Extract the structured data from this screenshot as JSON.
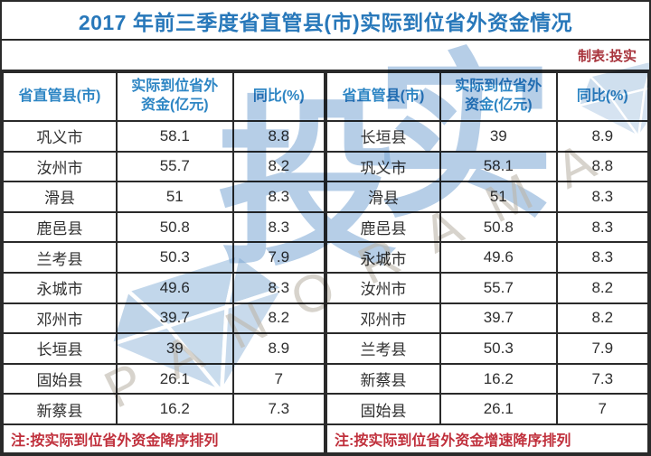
{
  "title": "2017 年前三季度省直管县(市)实际到位省外资金情况",
  "byline": "制表:投实",
  "colors": {
    "title_blue": "#2878ba",
    "header_blue": "#2e86c4",
    "byline_red": "#a8343c",
    "note_red": "#c0303c",
    "border": "#2a2a2a",
    "watermark_blue": "#7aa6d3",
    "watermark_gray": "#bcb5aa"
  },
  "watermark": {
    "char1": "投",
    "char2": "实",
    "brand": "PANORAMA"
  },
  "chart_data": {
    "type": "table",
    "title": "2017 年前三季度省直管县(市)实际到位省外资金情况",
    "tables": [
      {
        "headers": [
          "省直管县(市)",
          [
            "实际到位省外",
            "资金(亿元)"
          ],
          "同比(%)"
        ],
        "rows": [
          [
            "巩义市",
            "58.1",
            "8.8"
          ],
          [
            "汝州市",
            "55.7",
            "8.2"
          ],
          [
            "滑县",
            "51",
            "8.3"
          ],
          [
            "鹿邑县",
            "50.8",
            "8.3"
          ],
          [
            "兰考县",
            "50.3",
            "7.9"
          ],
          [
            "永城市",
            "49.6",
            "8.3"
          ],
          [
            "邓州市",
            "39.7",
            "8.2"
          ],
          [
            "长垣县",
            "39",
            "8.9"
          ],
          [
            "固始县",
            "26.1",
            "7"
          ],
          [
            "新蔡县",
            "16.2",
            "7.3"
          ]
        ],
        "note": "注:按实际到位省外资金降序排列"
      },
      {
        "headers": [
          "省直管县(市)",
          [
            "实际到位省外",
            "资金(亿元)"
          ],
          "同比(%)"
        ],
        "rows": [
          [
            "长垣县",
            "39",
            "8.9"
          ],
          [
            "巩义市",
            "58.1",
            "8.8"
          ],
          [
            "滑县",
            "51",
            "8.3"
          ],
          [
            "鹿邑县",
            "50.8",
            "8.3"
          ],
          [
            "永城市",
            "49.6",
            "8.3"
          ],
          [
            "汝州市",
            "55.7",
            "8.2"
          ],
          [
            "邓州市",
            "39.7",
            "8.2"
          ],
          [
            "兰考县",
            "50.3",
            "7.9"
          ],
          [
            "新蔡县",
            "16.2",
            "7.3"
          ],
          [
            "固始县",
            "26.1",
            "7"
          ]
        ],
        "note": "注:按实际到位省外资金增速降序排列"
      }
    ]
  }
}
